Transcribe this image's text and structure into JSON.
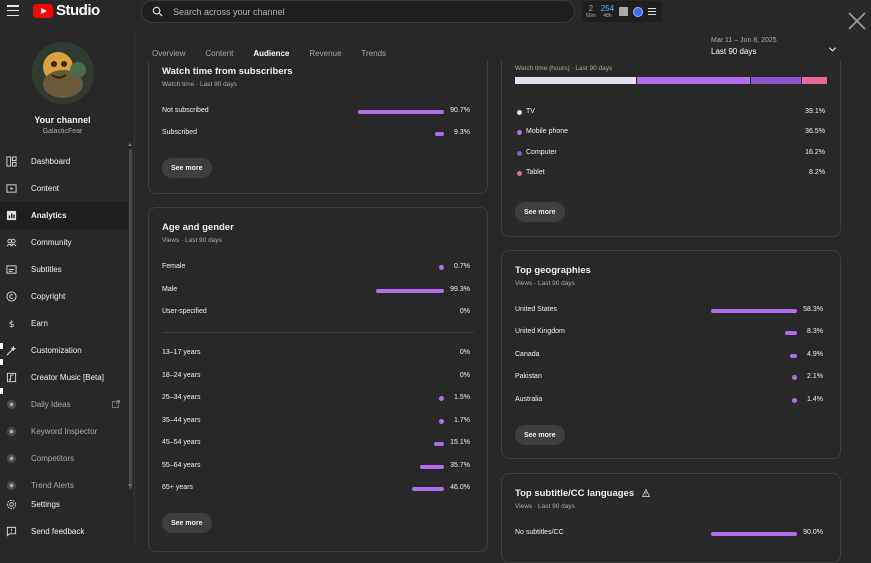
{
  "app": {
    "logo_text": "Studio"
  },
  "search": {
    "placeholder": "Search across your channel"
  },
  "header_stats": [
    {
      "value": "2",
      "label": "60m"
    },
    {
      "value": "254",
      "label": "48h"
    }
  ],
  "channel": {
    "title": "Your channel",
    "handle": "GalacticFear"
  },
  "sidebar": {
    "items": [
      {
        "label": "Dashboard",
        "icon": "dashboard-icon"
      },
      {
        "label": "Content",
        "icon": "content-icon"
      },
      {
        "label": "Analytics",
        "icon": "analytics-icon",
        "active": true
      },
      {
        "label": "Community",
        "icon": "community-icon"
      },
      {
        "label": "Subtitles",
        "icon": "subtitles-icon"
      },
      {
        "label": "Copyright",
        "icon": "copyright-icon"
      },
      {
        "label": "Earn",
        "icon": "earn-icon"
      },
      {
        "label": "Customization",
        "icon": "customization-icon"
      },
      {
        "label": "Creator Music [Beta]",
        "icon": "creator-music-icon"
      },
      {
        "label": "Daily Ideas",
        "icon": "daily-ideas-icon"
      },
      {
        "label": "Keyword Inspector",
        "icon": "keyword-inspector-icon"
      },
      {
        "label": "Competitors",
        "icon": "competitors-icon"
      },
      {
        "label": "Trend Alerts",
        "icon": "trend-alerts-icon"
      }
    ],
    "bottom": [
      {
        "label": "Settings",
        "icon": "settings-icon"
      },
      {
        "label": "Send feedback",
        "icon": "feedback-icon"
      }
    ]
  },
  "tabs": [
    "Overview",
    "Content",
    "Audience",
    "Revenue",
    "Trends"
  ],
  "active_tab": "Audience",
  "date_range": {
    "range": "Mar 11 – Jun 8, 2025",
    "label": "Last 90 days"
  },
  "watch_time_subscribers": {
    "title": "Watch time from subscribers",
    "subtitle": "Watch time · Last 90 days",
    "rows": [
      {
        "label": "Not subscribed",
        "pct": "90.7%",
        "value": 90.7
      },
      {
        "label": "Subscribed",
        "pct": "9.3%",
        "value": 9.3
      }
    ],
    "see_more": "See more"
  },
  "age_gender": {
    "title": "Age and gender",
    "subtitle": "Views · Last 90 days",
    "gender": [
      {
        "label": "Female",
        "pct": "0.7%",
        "value": 0.7
      },
      {
        "label": "Male",
        "pct": "99.3%",
        "value": 99.3
      },
      {
        "label": "User-specified",
        "pct": "0%",
        "value": 0
      }
    ],
    "age": [
      {
        "label": "13–17 years",
        "pct": "0%",
        "value": 0
      },
      {
        "label": "18–24 years",
        "pct": "0%",
        "value": 0
      },
      {
        "label": "25–34 years",
        "pct": "1.5%",
        "value": 1.5
      },
      {
        "label": "35–44 years",
        "pct": "1.7%",
        "value": 1.7
      },
      {
        "label": "45–54 years",
        "pct": "15.1%",
        "value": 15.1
      },
      {
        "label": "55–64 years",
        "pct": "35.7%",
        "value": 35.7
      },
      {
        "label": "65+ years",
        "pct": "46.0%",
        "value": 46.0
      }
    ],
    "see_more": "See more"
  },
  "device_type": {
    "subtitle": "Watch time (hours) · Last 90 days",
    "segments": [
      {
        "label": "TV",
        "pct": "39.1%",
        "value": 39.1,
        "color": "#e6dff0"
      },
      {
        "label": "Mobile phone",
        "pct": "36.5%",
        "value": 36.5,
        "color": "#b56cf0"
      },
      {
        "label": "Computer",
        "pct": "16.2%",
        "value": 16.2,
        "color": "#8e55c9"
      },
      {
        "label": "Tablet",
        "pct": "8.2%",
        "value": 8.2,
        "color": "#e7699a"
      }
    ],
    "see_more": "See more"
  },
  "top_geographies": {
    "title": "Top geographies",
    "subtitle": "Views · Last 90 days",
    "rows": [
      {
        "label": "United States",
        "pct": "58.3%",
        "value": 58.3
      },
      {
        "label": "United Kingdom",
        "pct": "8.3%",
        "value": 8.3
      },
      {
        "label": "Canada",
        "pct": "4.9%",
        "value": 4.9
      },
      {
        "label": "Pakistan",
        "pct": "2.1%",
        "value": 2.1
      },
      {
        "label": "Australia",
        "pct": "1.4%",
        "value": 1.4
      }
    ],
    "see_more": "See more"
  },
  "subtitle_languages": {
    "title": "Top subtitle/CC languages",
    "subtitle": "Views · Last 90 days",
    "rows": [
      {
        "label": "No subtitles/CC",
        "pct": "90.0%",
        "value": 90.0
      }
    ]
  },
  "colors": {
    "accent": "#b56cf0",
    "brand": "#ff0000"
  }
}
